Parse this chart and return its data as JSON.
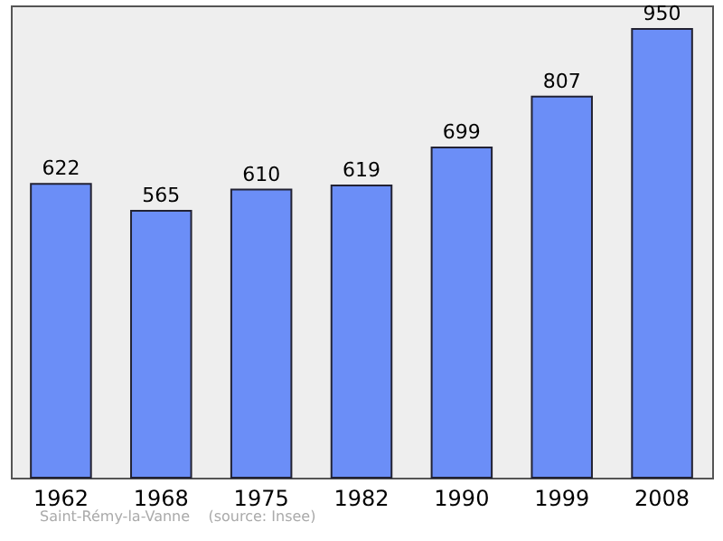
{
  "chart_data": {
    "type": "bar",
    "categories": [
      "1962",
      "1968",
      "1975",
      "1982",
      "1990",
      "1999",
      "2008"
    ],
    "values": [
      622,
      565,
      610,
      619,
      699,
      807,
      950
    ],
    "color": "#6b8ef7",
    "data_labels": true,
    "annotations": [
      "Saint-Rémy-la-Vanne    (source: Insee)"
    ]
  }
}
